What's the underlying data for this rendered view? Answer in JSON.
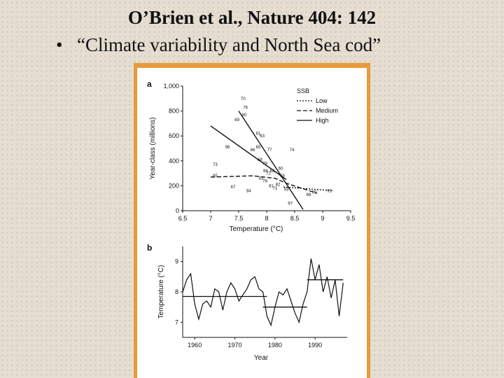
{
  "slide": {
    "title": "O’Brien et al., Nature 404: 142",
    "bullet": "•",
    "subtitle": "“Climate variability and North Sea cod”"
  },
  "chart_data": [
    {
      "type": "scatter",
      "panel_label": "a",
      "xlabel": "Temperature (°C)",
      "ylabel": "Year-class (millions)",
      "xlim": [
        6.5,
        9.5
      ],
      "ylim": [
        0,
        1000
      ],
      "xticks": [
        "6.5",
        "7",
        "7.5",
        "8",
        "8.5",
        "9",
        "9.5"
      ],
      "yticks": [
        "0",
        "200",
        "400",
        "600",
        "800",
        "1,000"
      ],
      "legend": {
        "title": "SSB",
        "position": "top-right",
        "entries": [
          {
            "label": "Low",
            "style": "dotted"
          },
          {
            "label": "Medium",
            "style": "dashed"
          },
          {
            "label": "High",
            "style": "solid"
          }
        ]
      },
      "points": [
        {
          "label": "70",
          "x": 7.58,
          "y": 900
        },
        {
          "label": "76",
          "x": 7.62,
          "y": 830
        },
        {
          "label": "80",
          "x": 7.6,
          "y": 770
        },
        {
          "label": "69",
          "x": 7.47,
          "y": 730
        },
        {
          "label": "61",
          "x": 7.85,
          "y": 620
        },
        {
          "label": "63",
          "x": 7.92,
          "y": 600
        },
        {
          "label": "96",
          "x": 7.3,
          "y": 510
        },
        {
          "label": "66",
          "x": 7.75,
          "y": 490
        },
        {
          "label": "65",
          "x": 7.85,
          "y": 510
        },
        {
          "label": "77",
          "x": 8.05,
          "y": 490
        },
        {
          "label": "74",
          "x": 8.45,
          "y": 490
        },
        {
          "label": "68",
          "x": 7.88,
          "y": 410
        },
        {
          "label": "73",
          "x": 7.08,
          "y": 370
        },
        {
          "label": "86",
          "x": 7.98,
          "y": 320
        },
        {
          "label": "62",
          "x": 8.1,
          "y": 320
        },
        {
          "label": "72",
          "x": 8.03,
          "y": 300
        },
        {
          "label": "60",
          "x": 8.25,
          "y": 340
        },
        {
          "label": "59",
          "x": 8.28,
          "y": 280
        },
        {
          "label": "85",
          "x": 7.08,
          "y": 280
        },
        {
          "label": "83",
          "x": 7.9,
          "y": 260
        },
        {
          "label": "78",
          "x": 7.97,
          "y": 240
        },
        {
          "label": "67",
          "x": 7.4,
          "y": 190
        },
        {
          "label": "84",
          "x": 7.68,
          "y": 160
        },
        {
          "label": "81",
          "x": 8.08,
          "y": 200
        },
        {
          "label": "71",
          "x": 8.15,
          "y": 180
        },
        {
          "label": "82",
          "x": 8.2,
          "y": 210
        },
        {
          "label": "93",
          "x": 8.35,
          "y": 170
        },
        {
          "label": "90",
          "x": 8.85,
          "y": 150
        },
        {
          "label": "88",
          "x": 8.75,
          "y": 130
        },
        {
          "label": "97",
          "x": 8.42,
          "y": 60
        },
        {
          "label": "91",
          "x": 9.12,
          "y": 160
        },
        {
          "label": "79",
          "x": 7.97,
          "y": 380
        }
      ],
      "fit_lines": [
        {
          "ssb": "Low",
          "style": "dotted",
          "x": [
            8.3,
            9.2
          ],
          "y": [
            190,
            160
          ]
        },
        {
          "ssb": "Medium",
          "style": "dashed",
          "x": [
            7.0,
            7.75,
            8.15,
            8.35,
            8.9
          ],
          "y": [
            270,
            280,
            260,
            220,
            140
          ]
        },
        {
          "ssb": "High",
          "style": "solid",
          "x": [
            7.0,
            8.35
          ],
          "y": [
            680,
            250
          ]
        },
        {
          "ssb": "High",
          "style": "solid",
          "x": [
            7.5,
            8.65
          ],
          "y": [
            800,
            10
          ]
        }
      ]
    },
    {
      "type": "line",
      "panel_label": "b",
      "xlabel": "Year",
      "ylabel": "Temperature (°C)",
      "xlim": [
        1957,
        1998
      ],
      "ylim": [
        6.5,
        9.5
      ],
      "xticks": [
        "1960",
        "1970",
        "1980",
        "1990"
      ],
      "yticks": [
        "7",
        "8",
        "9"
      ],
      "grid": false,
      "series": [
        {
          "x": [
            1957,
            1958,
            1959,
            1960,
            1961,
            1962,
            1963,
            1964,
            1965,
            1966,
            1967,
            1968,
            1969,
            1970,
            1971,
            1972,
            1973,
            1974,
            1975,
            1976,
            1977,
            1978,
            1979,
            1980,
            1981,
            1982,
            1983,
            1984,
            1985,
            1986,
            1987,
            1988,
            1989,
            1990,
            1991,
            1992,
            1993,
            1994,
            1995,
            1996,
            1997
          ],
          "y": [
            8.0,
            8.4,
            8.6,
            7.6,
            7.1,
            7.6,
            7.7,
            7.5,
            8.1,
            8.0,
            7.4,
            8.0,
            8.3,
            8.1,
            7.7,
            7.9,
            8.1,
            8.4,
            8.5,
            8.1,
            8.0,
            7.2,
            6.9,
            7.5,
            8.0,
            7.9,
            8.1,
            7.7,
            7.3,
            7.0,
            7.6,
            8.0,
            9.1,
            8.4,
            8.9,
            8.0,
            8.5,
            7.8,
            8.4,
            7.2,
            8.3
          ]
        }
      ],
      "means": [
        {
          "x": [
            1957,
            1978
          ],
          "y": [
            7.85,
            7.85
          ]
        },
        {
          "x": [
            1977,
            1988
          ],
          "y": [
            7.5,
            7.5
          ]
        },
        {
          "x": [
            1988,
            1997
          ],
          "y": [
            8.4,
            8.4
          ]
        }
      ]
    }
  ]
}
